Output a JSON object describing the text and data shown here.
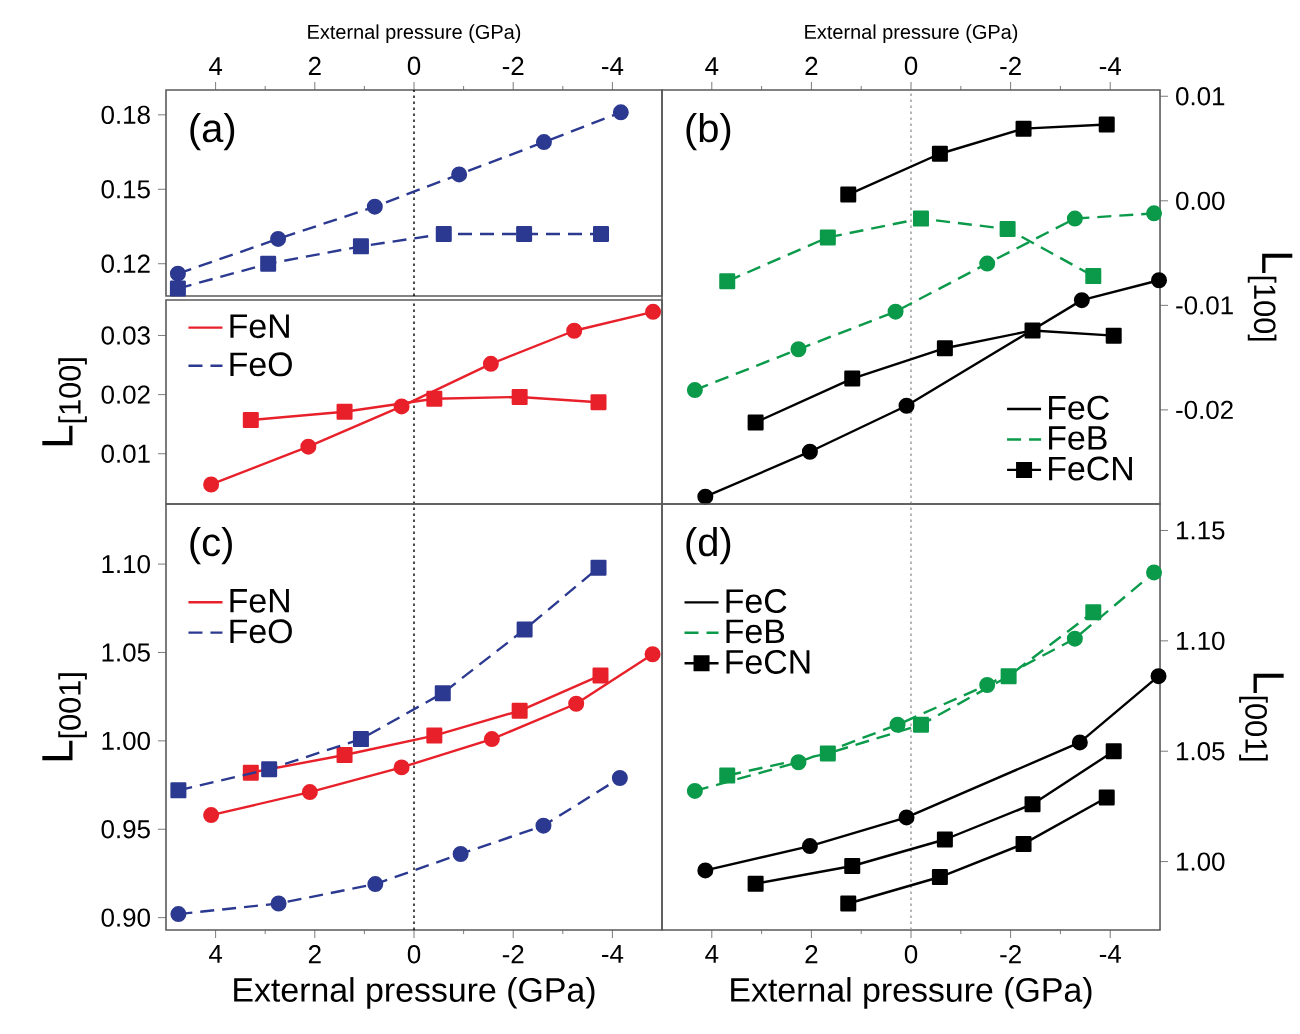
{
  "chart_data": [
    {
      "type": "line",
      "xlabel": "External pressure (GPa)",
      "xlim": [
        5,
        -5
      ],
      "xticks": [
        4,
        2,
        0,
        -2,
        -4
      ],
      "ylim": [
        0.107,
        0.19
      ],
      "yticks": [
        0.12,
        0.15,
        0.18
      ],
      "annotations": [
        "(a)"
      ],
      "legend": "bottom",
      "ref_lines": [
        {
          "axis": "x",
          "value": 0,
          "line_style": "dotted",
          "color": "#000000"
        }
      ],
      "series": [
        {
          "name": "FeO",
          "color": "#2b3990",
          "line_style": "dashed",
          "marker": "circle",
          "x": [
            4.76,
            2.74,
            0.79,
            -0.91,
            -2.62,
            -4.17
          ],
          "values": [
            0.116,
            0.13,
            0.143,
            0.156,
            0.169,
            0.181
          ]
        },
        {
          "color": "#2b3990",
          "line_style": "dashed",
          "marker": "square",
          "x": [
            4.76,
            2.94,
            1.07,
            -0.6,
            -2.22,
            -3.77
          ],
          "values": [
            0.11,
            0.12,
            0.127,
            0.132,
            0.132,
            0.132
          ]
        }
      ]
    },
    {
      "type": "line",
      "ylabel": "L$_{[100]}$",
      "xlim": [
        5,
        -5
      ],
      "ylim": [
        0.0015,
        0.036
      ],
      "yticks": [
        0.01,
        0.02,
        0.03
      ],
      "tick_labels": "y",
      "legend": "top left",
      "ref_lines": [
        {
          "axis": "x",
          "value": 0,
          "line_style": "dotted",
          "color": "#000000"
        }
      ],
      "series": [
        {
          "name": "FeN",
          "color": "#e8202a",
          "line_style": "solid",
          "marker": "circle",
          "x": [
            4.09,
            2.13,
            0.25,
            -1.55,
            -3.23,
            -4.82
          ],
          "values": [
            0.0048,
            0.0112,
            0.018,
            0.0252,
            0.0308,
            0.034
          ]
        },
        {
          "color": "#e8202a",
          "line_style": "solid",
          "marker": "square",
          "x": [
            3.29,
            1.4,
            -0.41,
            -2.13,
            -3.72
          ],
          "values": [
            0.0157,
            0.0171,
            0.0193,
            0.0196,
            0.0187
          ]
        }
      ]
    },
    {
      "type": "line",
      "xlabel": "External pressure (GPa)",
      "xlim": [
        5,
        -5
      ],
      "xticks": [
        4,
        2,
        0,
        -2,
        -4
      ],
      "y2label": "L$_{[100]}$",
      "y2lim": [
        -0.029,
        0.0106
      ],
      "y2ticks": [
        0.01,
        {
          "value": 0,
          "label": "0.00"
        },
        -0.01,
        -0.02
      ],
      "annotations": [
        "(b)"
      ],
      "legend": "bottom right",
      "ref_lines": [
        {
          "axis": "x",
          "value": 0,
          "line_style": "dotted",
          "color": "#999999"
        }
      ],
      "series": [
        {
          "name": "FeC",
          "color": "#000000",
          "line_style": "solid",
          "marker": "circle",
          "axis": "y2",
          "x": [
            4.13,
            2.03,
            0.09,
            -3.43,
            -4.98
          ],
          "values": [
            -0.0283,
            -0.024,
            -0.0196,
            -0.0095,
            -0.0076
          ]
        },
        {
          "color": "#000000",
          "line_style": "solid",
          "marker": "square",
          "axis": "y2",
          "x": [
            3.12,
            1.18,
            -0.68,
            -2.44,
            -4.07
          ],
          "values": [
            -0.0212,
            -0.017,
            -0.0141,
            -0.0124,
            -0.0129
          ]
        },
        {
          "name": "FeB",
          "color": "#0a9a4a",
          "line_style": "dashed",
          "marker": "circle",
          "axis": "y2",
          "x": [
            4.34,
            2.26,
            0.31,
            -1.53,
            -3.29,
            -4.88
          ],
          "values": [
            -0.0181,
            -0.0142,
            -0.0106,
            -0.006,
            -0.0017,
            -0.0012
          ]
        },
        {
          "color": "#0a9a4a",
          "line_style": "dashed",
          "marker": "square",
          "axis": "y2",
          "x": [
            3.69,
            1.67,
            -0.2,
            -1.94,
            -3.66
          ],
          "values": [
            -0.0077,
            -0.0035,
            -0.0017,
            -0.0027,
            -0.0072
          ]
        },
        {
          "name": "FeCN",
          "color": "#000000",
          "line_style": "solid",
          "marker": "square",
          "axis": "y2",
          "x": [
            1.26,
            -0.58,
            -2.26,
            -3.93
          ],
          "values": [
            0.0006,
            0.0045,
            0.0069,
            0.0073
          ]
        }
      ]
    },
    {
      "type": "line",
      "xlabel": "External pressure (GPa)",
      "xlim": [
        5,
        -5
      ],
      "xticks": [
        4,
        2,
        0,
        -2,
        -4
      ],
      "ylabel": "L$_{[001]}$",
      "ylim": [
        0.893,
        1.134
      ],
      "yticks": [
        {
          "value": 0.9,
          "label": "0.90"
        },
        0.95,
        {
          "value": 1,
          "label": "1.00"
        },
        1.05,
        {
          "value": 1.1,
          "label": "1.10"
        }
      ],
      "annotations": [
        "(c)"
      ],
      "legend": "top left",
      "ref_lines": [
        {
          "axis": "x",
          "value": 0,
          "line_style": "dotted",
          "color": "#000000"
        }
      ],
      "series": [
        {
          "name": "FeN",
          "color": "#e8202a",
          "line_style": "solid",
          "marker": "circle",
          "x": [
            4.09,
            2.1,
            0.25,
            -1.57,
            -3.27,
            -4.81
          ],
          "values": [
            0.958,
            0.971,
            0.985,
            1.001,
            1.021,
            1.049
          ]
        },
        {
          "color": "#e8202a",
          "line_style": "solid",
          "marker": "square",
          "x": [
            3.29,
            1.4,
            -0.41,
            -2.13,
            -3.76
          ],
          "values": [
            0.982,
            0.992,
            1.003,
            1.017,
            1.037
          ]
        },
        {
          "name": "FeO",
          "color": "#2b3990",
          "line_style": "dashed",
          "marker": "circle",
          "x": [
            4.75,
            2.73,
            0.78,
            -0.94,
            -2.61,
            -4.15
          ],
          "values": [
            0.902,
            0.908,
            0.919,
            0.936,
            0.952,
            0.979
          ]
        },
        {
          "color": "#2b3990",
          "line_style": "dashed",
          "marker": "square",
          "x": [
            4.75,
            2.92,
            1.07,
            -0.58,
            -2.23,
            -3.72
          ],
          "values": [
            0.972,
            0.984,
            1.001,
            1.027,
            1.063,
            1.098
          ]
        }
      ]
    },
    {
      "type": "line",
      "xlabel": "External pressure (GPa)",
      "xlim": [
        5,
        -5
      ],
      "xticks": [
        4,
        2,
        0,
        -2,
        -4
      ],
      "y2label": "L$_{[001]}$",
      "y2lim": [
        0.969,
        1.162
      ],
      "y2ticks": [
        {
          "value": 1,
          "label": "1.00"
        },
        1.05,
        {
          "value": 1.1,
          "label": "1.10"
        },
        1.15
      ],
      "annotations": [
        "(d)"
      ],
      "legend": "top left",
      "ref_lines": [
        {
          "axis": "x",
          "value": 0,
          "line_style": "dotted",
          "color": "#999999"
        }
      ],
      "series": [
        {
          "name": "FeC",
          "color": "#000000",
          "line_style": "solid",
          "marker": "circle",
          "axis": "y2",
          "x": [
            4.13,
            2.03,
            0.09,
            -3.39,
            -4.97
          ],
          "values": [
            0.996,
            1.007,
            1.02,
            1.054,
            1.084
          ]
        },
        {
          "color": "#000000",
          "line_style": "solid",
          "marker": "square",
          "axis": "y2",
          "x": [
            3.12,
            1.18,
            -0.68,
            -2.44,
            -4.07
          ],
          "values": [
            0.99,
            0.998,
            1.01,
            1.026,
            1.05
          ]
        },
        {
          "name": "FeB",
          "color": "#0a9a4a",
          "line_style": "dashed",
          "marker": "circle",
          "axis": "y2",
          "x": [
            4.34,
            2.26,
            0.27,
            -1.53,
            -3.29,
            -4.88
          ],
          "values": [
            1.032,
            1.045,
            1.062,
            1.08,
            1.101,
            1.131
          ]
        },
        {
          "color": "#0a9a4a",
          "line_style": "dashed",
          "marker": "square",
          "axis": "y2",
          "x": [
            3.69,
            1.67,
            -0.2,
            -1.96,
            -3.66
          ],
          "values": [
            1.039,
            1.049,
            1.062,
            1.084,
            1.113
          ]
        },
        {
          "name": "FeCN",
          "color": "#000000",
          "line_style": "solid",
          "marker": "square",
          "axis": "y2",
          "x": [
            1.26,
            -0.58,
            -2.26,
            -3.93
          ],
          "values": [
            0.981,
            0.993,
            1.008,
            1.029
          ]
        }
      ]
    }
  ]
}
